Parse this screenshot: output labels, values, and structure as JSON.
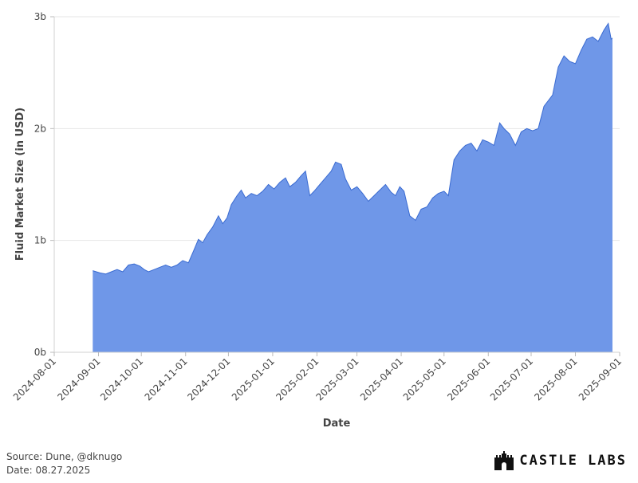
{
  "chart_data": {
    "type": "area",
    "title": "",
    "xlabel": "Date",
    "ylabel": "Fluid Market Size (in USD)",
    "x_tick_labels": [
      "2024-08-01",
      "2024-09-01",
      "2024-10-01",
      "2024-11-01",
      "2024-12-01",
      "2025-01-01",
      "2025-02-01",
      "2025-03-01",
      "2025-04-01",
      "2025-05-01",
      "2025-06-01",
      "2025-07-01",
      "2025-08-01",
      "2025-09-01"
    ],
    "y_tick_labels": [
      "0b",
      "1b",
      "2b",
      "3b"
    ],
    "xlim": [
      "2024-08-01",
      "2025-09-01"
    ],
    "ylim": [
      0,
      3
    ],
    "y_unit": "billions USD",
    "grid": true,
    "color": "#6f97e8",
    "line_color": "#3a6bd1",
    "series": [
      {
        "points": [
          [
            "2024-08-28",
            0.73
          ],
          [
            "2024-09-02",
            0.71
          ],
          [
            "2024-09-06",
            0.7
          ],
          [
            "2024-09-10",
            0.72
          ],
          [
            "2024-09-14",
            0.74
          ],
          [
            "2024-09-18",
            0.72
          ],
          [
            "2024-09-22",
            0.78
          ],
          [
            "2024-09-26",
            0.79
          ],
          [
            "2024-09-30",
            0.77
          ],
          [
            "2024-10-03",
            0.74
          ],
          [
            "2024-10-06",
            0.72
          ],
          [
            "2024-10-10",
            0.74
          ],
          [
            "2024-10-14",
            0.76
          ],
          [
            "2024-10-18",
            0.78
          ],
          [
            "2024-10-22",
            0.76
          ],
          [
            "2024-10-26",
            0.78
          ],
          [
            "2024-10-30",
            0.82
          ],
          [
            "2024-11-03",
            0.8
          ],
          [
            "2024-11-07",
            0.92
          ],
          [
            "2024-11-10",
            1.01
          ],
          [
            "2024-11-13",
            0.98
          ],
          [
            "2024-11-16",
            1.05
          ],
          [
            "2024-11-20",
            1.12
          ],
          [
            "2024-11-24",
            1.22
          ],
          [
            "2024-11-27",
            1.15
          ],
          [
            "2024-11-30",
            1.2
          ],
          [
            "2024-12-03",
            1.32
          ],
          [
            "2024-12-07",
            1.4
          ],
          [
            "2024-12-10",
            1.45
          ],
          [
            "2024-12-13",
            1.38
          ],
          [
            "2024-12-17",
            1.42
          ],
          [
            "2024-12-21",
            1.4
          ],
          [
            "2024-12-25",
            1.44
          ],
          [
            "2024-12-29",
            1.5
          ],
          [
            "2025-01-02",
            1.46
          ],
          [
            "2025-01-06",
            1.52
          ],
          [
            "2025-01-10",
            1.56
          ],
          [
            "2025-01-13",
            1.48
          ],
          [
            "2025-01-17",
            1.52
          ],
          [
            "2025-01-21",
            1.58
          ],
          [
            "2025-01-24",
            1.62
          ],
          [
            "2025-01-27",
            1.4
          ],
          [
            "2025-01-30",
            1.44
          ],
          [
            "2025-02-03",
            1.5
          ],
          [
            "2025-02-07",
            1.56
          ],
          [
            "2025-02-11",
            1.62
          ],
          [
            "2025-02-14",
            1.7
          ],
          [
            "2025-02-18",
            1.68
          ],
          [
            "2025-02-21",
            1.55
          ],
          [
            "2025-02-25",
            1.45
          ],
          [
            "2025-03-01",
            1.48
          ],
          [
            "2025-03-05",
            1.42
          ],
          [
            "2025-03-09",
            1.35
          ],
          [
            "2025-03-13",
            1.4
          ],
          [
            "2025-03-17",
            1.45
          ],
          [
            "2025-03-21",
            1.5
          ],
          [
            "2025-03-25",
            1.43
          ],
          [
            "2025-03-28",
            1.4
          ],
          [
            "2025-03-31",
            1.48
          ],
          [
            "2025-04-03",
            1.44
          ],
          [
            "2025-04-07",
            1.22
          ],
          [
            "2025-04-11",
            1.18
          ],
          [
            "2025-04-15",
            1.28
          ],
          [
            "2025-04-19",
            1.3
          ],
          [
            "2025-04-23",
            1.38
          ],
          [
            "2025-04-27",
            1.42
          ],
          [
            "2025-05-01",
            1.44
          ],
          [
            "2025-05-04",
            1.4
          ],
          [
            "2025-05-08",
            1.72
          ],
          [
            "2025-05-12",
            1.8
          ],
          [
            "2025-05-16",
            1.85
          ],
          [
            "2025-05-20",
            1.87
          ],
          [
            "2025-05-24",
            1.8
          ],
          [
            "2025-05-28",
            1.9
          ],
          [
            "2025-06-01",
            1.88
          ],
          [
            "2025-06-05",
            1.85
          ],
          [
            "2025-06-09",
            2.05
          ],
          [
            "2025-06-12",
            2.0
          ],
          [
            "2025-06-16",
            1.95
          ],
          [
            "2025-06-20",
            1.85
          ],
          [
            "2025-06-24",
            1.97
          ],
          [
            "2025-06-28",
            2.0
          ],
          [
            "2025-07-02",
            1.98
          ],
          [
            "2025-07-06",
            2.0
          ],
          [
            "2025-07-10",
            2.2
          ],
          [
            "2025-07-13",
            2.25
          ],
          [
            "2025-07-16",
            2.3
          ],
          [
            "2025-07-20",
            2.55
          ],
          [
            "2025-07-24",
            2.65
          ],
          [
            "2025-07-28",
            2.6
          ],
          [
            "2025-08-01",
            2.58
          ],
          [
            "2025-08-05",
            2.7
          ],
          [
            "2025-08-09",
            2.8
          ],
          [
            "2025-08-13",
            2.82
          ],
          [
            "2025-08-17",
            2.78
          ],
          [
            "2025-08-21",
            2.88
          ],
          [
            "2025-08-24",
            2.94
          ],
          [
            "2025-08-26",
            2.8
          ],
          [
            "2025-08-27",
            2.81
          ]
        ]
      }
    ]
  },
  "footer": {
    "source": "Source: Dune, @dknugo",
    "date": "Date: 08.27.2025"
  },
  "logo": {
    "text": "CASTLE LABS",
    "icon": "castle-icon"
  }
}
